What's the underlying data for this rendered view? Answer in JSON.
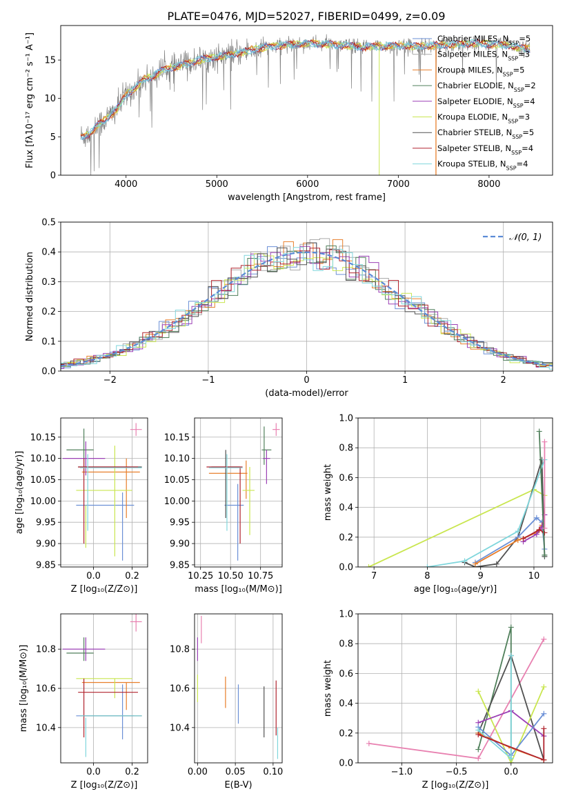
{
  "figure_title": "PLATE=0476, MJD=52027, FIBERID=0499, z=0.09",
  "colors": {
    "Chabrier MILES": "#6a8fd6",
    "Salpeter MILES": "#aaaaaa",
    "Kroupa MILES": "#e87e2a",
    "Chabrier ELODIE": "#4f7f5a",
    "Salpeter ELODIE": "#9b3fb5",
    "Kroupa ELODIE": "#c9e64f",
    "Chabrier STELIB": "#505050",
    "Salpeter STELIB": "#b0222d",
    "Kroupa STELIB": "#7fd6dc",
    "pink": "#e880b0",
    "gaussian": "#5b8bd6",
    "spectrum_data": "#808080"
  },
  "chart_data": [
    {
      "id": "spectrum",
      "type": "line",
      "title": "PLATE=0476, MJD=52027, FIBERID=0499, z=0.09",
      "xlabel": "wavelength [Angstrom, rest frame]",
      "ylabel": "Flux [fλ10⁻¹⁷ erg cm⁻² s⁻¹ A⁻¹]",
      "xlim": [
        3280,
        8700
      ],
      "ylim": [
        0,
        19.5
      ],
      "xticks": [
        "4000",
        "5000",
        "6000",
        "7000",
        "8000"
      ],
      "yticks": [
        "0",
        "5",
        "10",
        "15"
      ],
      "grid": false,
      "legend_position": "top-right",
      "legend": [
        "Chabrier MILES, N_SSP=5",
        "Salpeter MILES, N_SSP=3",
        "Kroupa MILES, N_SSP=5",
        "Chabrier ELODIE, N_SSP=2",
        "Salpeter ELODIE, N_SSP=4",
        "Kroupa ELODIE, N_SSP=3",
        "Chabrier STELIB, N_SSP=5",
        "Salpeter STELIB, N_SSP=4",
        "Kroupa STELIB, N_SSP=4"
      ],
      "continuum": {
        "x": [
          3500,
          3600,
          3700,
          3800,
          3900,
          4000,
          4100,
          4200,
          4300,
          4400,
          4600,
          4800,
          5000,
          5200,
          5400,
          5600,
          5800,
          6000,
          6200,
          6400,
          6600,
          6800,
          7000,
          7200,
          7400,
          7600,
          7800,
          8000,
          8200,
          8450
        ],
        "y": [
          5.0,
          5.4,
          6.6,
          7.5,
          8.6,
          10.5,
          11.4,
          12.5,
          12.9,
          13.7,
          14.3,
          15.0,
          15.4,
          15.8,
          16.4,
          16.8,
          17.0,
          17.2,
          17.1,
          16.9,
          16.7,
          16.8,
          16.9,
          16.8,
          16.9,
          17.0,
          17.2,
          17.1,
          16.9,
          16.4
        ]
      }
    },
    {
      "id": "residual_histogram",
      "type": "histogram",
      "xlabel": "(data-model)/error",
      "ylabel": "Normed distribution",
      "xlim": [
        -2.5,
        2.5
      ],
      "ylim": [
        0,
        0.5
      ],
      "xticks": [
        "−2",
        "−1",
        "0",
        "1",
        "2"
      ],
      "yticks": [
        "0.0",
        "0.1",
        "0.2",
        "0.3",
        "0.4",
        "0.5"
      ],
      "grid": true,
      "legend_position": "top-right",
      "legend": [
        "𝒩(0, 1)"
      ],
      "reference_curve": "standard normal density"
    },
    {
      "id": "age_vs_Z",
      "type": "errorbar",
      "xlabel": "Z [log₁₀(Z/Z⊙)]",
      "ylabel": "age  [log₁₀(age/yr)]",
      "xlim": [
        -0.17,
        0.28
      ],
      "ylim": [
        9.845,
        10.195
      ],
      "xticks": [
        "0.0",
        "0.2"
      ],
      "yticks": [
        "9.85",
        "9.90",
        "9.95",
        "10.00",
        "10.05",
        "10.10",
        "10.15"
      ],
      "grid": true,
      "points": [
        {
          "series": "Chabrier MILES",
          "x": 0.06,
          "xerr": 0.15,
          "y": 9.99,
          "yerr": 0.0
        },
        {
          "series": "Chabrier MILES",
          "x": 0.15,
          "xerr": 0.0,
          "y": 9.94,
          "yerr": 0.08
        },
        {
          "series": "Kroupa MILES",
          "x": 0.09,
          "xerr": 0.15,
          "y": 10.068,
          "yerr": 0.0
        },
        {
          "series": "Kroupa MILES",
          "x": 0.17,
          "xerr": 0.0,
          "y": 10.03,
          "yerr": 0.07
        },
        {
          "series": "Chabrier ELODIE",
          "x": -0.07,
          "xerr": 0.07,
          "y": 10.12,
          "yerr": 0.0
        },
        {
          "series": "Chabrier ELODIE",
          "x": -0.05,
          "xerr": 0.0,
          "y": 10.12,
          "yerr": 0.05
        },
        {
          "series": "Salpeter ELODIE",
          "x": -0.05,
          "xerr": 0.11,
          "y": 10.1,
          "yerr": 0.0
        },
        {
          "series": "Salpeter ELODIE",
          "x": -0.04,
          "xerr": 0.0,
          "y": 10.1,
          "yerr": 0.04
        },
        {
          "series": "Kroupa ELODIE",
          "x": 0.055,
          "xerr": 0.145,
          "y": 10.025,
          "yerr": 0.0
        },
        {
          "series": "Kroupa ELODIE",
          "x": 0.11,
          "xerr": 0.0,
          "y": 10.0,
          "yerr": 0.13
        },
        {
          "series": "Kroupa ELODIE",
          "x": -0.04,
          "xerr": 0.0,
          "y": 9.94,
          "yerr": 0.05
        },
        {
          "series": "Chabrier STELIB",
          "x": 0.085,
          "xerr": 0.165,
          "y": 10.08,
          "yerr": 0.0
        },
        {
          "series": "Salpeter STELIB",
          "x": 0.075,
          "xerr": 0.155,
          "y": 10.08,
          "yerr": 0.0
        },
        {
          "series": "Salpeter STELIB",
          "x": -0.05,
          "xerr": 0.0,
          "y": 10.0,
          "yerr": 0.1
        },
        {
          "series": "Kroupa STELIB",
          "x": 0.09,
          "xerr": 0.16,
          "y": 10.078,
          "yerr": 0.0
        },
        {
          "series": "Kroupa STELIB",
          "x": -0.03,
          "xerr": 0.0,
          "y": 10.02,
          "yerr": 0.09
        },
        {
          "series": "pink",
          "x": 0.22,
          "xerr": 0.03,
          "y": 10.168,
          "yerr": 0.015
        }
      ]
    },
    {
      "id": "age_vs_mass",
      "type": "errorbar",
      "xlabel": "mass [log₁₀(M/M⊙)]",
      "xlim": [
        10.2,
        10.93
      ],
      "ylim": [
        9.845,
        10.195
      ],
      "xticks": [
        "10.25",
        "10.50",
        "10.75"
      ],
      "yticks": [
        "9.85",
        "9.90",
        "9.95",
        "10.00",
        "10.05",
        "10.10",
        "10.15"
      ],
      "grid": true,
      "points": [
        {
          "series": "Chabrier MILES",
          "x": 10.53,
          "xerr": 0.08,
          "y": 9.99,
          "yerr": 0.0
        },
        {
          "series": "Chabrier MILES",
          "x": 10.56,
          "xerr": 0.0,
          "y": 9.95,
          "yerr": 0.09
        },
        {
          "series": "Kroupa MILES",
          "x": 10.48,
          "xerr": 0.16,
          "y": 10.065,
          "yerr": 0.0
        },
        {
          "series": "Kroupa MILES",
          "x": 10.63,
          "xerr": 0.0,
          "y": 10.05,
          "yerr": 0.045
        },
        {
          "series": "Chabrier ELODIE",
          "x": 10.8,
          "xerr": 0.04,
          "y": 10.12,
          "yerr": 0.0
        },
        {
          "series": "Chabrier ELODIE",
          "x": 10.78,
          "xerr": 0.0,
          "y": 10.13,
          "yerr": 0.045
        },
        {
          "series": "Salpeter ELODIE",
          "x": 10.8,
          "xerr": 0.03,
          "y": 10.1,
          "yerr": 0.0
        },
        {
          "series": "Salpeter ELODIE",
          "x": 10.8,
          "xerr": 0.0,
          "y": 10.08,
          "yerr": 0.04
        },
        {
          "series": "Kroupa ELODIE",
          "x": 10.65,
          "xerr": 0.05,
          "y": 10.025,
          "yerr": 0.0
        },
        {
          "series": "Kroupa ELODIE",
          "x": 10.66,
          "xerr": 0.0,
          "y": 10.0,
          "yerr": 0.08
        },
        {
          "series": "Chabrier STELIB",
          "x": 10.46,
          "xerr": 0.12,
          "y": 10.08,
          "yerr": 0.0
        },
        {
          "series": "Chabrier STELIB",
          "x": 10.46,
          "xerr": 0.0,
          "y": 10.04,
          "yerr": 0.08
        },
        {
          "series": "Salpeter STELIB",
          "x": 10.45,
          "xerr": 0.15,
          "y": 10.08,
          "yerr": 0.0
        },
        {
          "series": "Salpeter STELIB",
          "x": 10.58,
          "xerr": 0.0,
          "y": 9.99,
          "yerr": 0.09
        },
        {
          "series": "Kroupa STELIB",
          "x": 10.46,
          "xerr": 0.14,
          "y": 10.078,
          "yerr": 0.0
        },
        {
          "series": "Kroupa STELIB",
          "x": 10.47,
          "xerr": 0.0,
          "y": 10.02,
          "yerr": 0.09
        },
        {
          "series": "pink",
          "x": 10.88,
          "xerr": 0.03,
          "y": 10.168,
          "yerr": 0.015
        }
      ]
    },
    {
      "id": "massweight_vs_age",
      "type": "line",
      "xlabel": "age  [log₁₀(age/yr)]",
      "ylabel": "mass weight",
      "xlim": [
        6.7,
        10.35
      ],
      "ylim": [
        0,
        1
      ],
      "xticks": [
        "7",
        "8",
        "9",
        "10"
      ],
      "yticks": [
        "0.0",
        "0.2",
        "0.4",
        "0.6",
        "0.8",
        "1.0"
      ],
      "grid": true,
      "series": [
        {
          "series": "Kroupa ELODIE",
          "x": [
            6.9,
            10.0,
            10.2
          ],
          "y": [
            0.0,
            0.52,
            0.48
          ]
        },
        {
          "series": "Chabrier STELIB",
          "x": [
            8.7,
            8.9,
            9.3,
            9.7,
            10.15,
            10.2
          ],
          "y": [
            0.03,
            0.0,
            0.02,
            0.2,
            0.72,
            0.07
          ]
        },
        {
          "series": "Kroupa STELIB",
          "x": [
            8.0,
            8.7,
            9.7,
            10.2
          ],
          "y": [
            0.0,
            0.04,
            0.24,
            0.72
          ]
        },
        {
          "series": "Chabrier MILES",
          "x": [
            8.9,
            9.7,
            10.05,
            10.15,
            10.2
          ],
          "y": [
            0.03,
            0.2,
            0.33,
            0.3,
            0.12
          ]
        },
        {
          "series": "Kroupa MILES",
          "x": [
            8.9,
            9.7,
            10.05,
            10.15
          ],
          "y": [
            0.02,
            0.18,
            0.23,
            0.28
          ]
        },
        {
          "series": "Salpeter ELODIE",
          "x": [
            9.8,
            10.05,
            10.15,
            10.2
          ],
          "y": [
            0.17,
            0.22,
            0.27,
            0.35
          ]
        },
        {
          "series": "Salpeter STELIB",
          "x": [
            9.8,
            10.1,
            10.2
          ],
          "y": [
            0.19,
            0.25,
            0.23
          ]
        },
        {
          "series": "Chabrier ELODIE",
          "x": [
            10.1,
            10.2
          ],
          "y": [
            0.91,
            0.08
          ]
        },
        {
          "series": "pink",
          "x": [
            10.2,
            10.2
          ],
          "y": [
            0.84,
            0.26
          ]
        }
      ]
    },
    {
      "id": "mass_vs_Z",
      "type": "errorbar",
      "xlabel": "Z [log₁₀(Z/Z⊙)]",
      "ylabel": "mass [log₁₀(M/M⊙)]",
      "xlim": [
        -0.17,
        0.28
      ],
      "ylim": [
        10.22,
        10.98
      ],
      "xticks": [
        "0.0",
        "0.2"
      ],
      "yticks": [
        "10.4",
        "10.6",
        "10.8"
      ],
      "grid": true,
      "points": [
        {
          "series": "Chabrier MILES",
          "x": 0.06,
          "xerr": 0.15,
          "y": 10.46,
          "yerr": 0.0
        },
        {
          "series": "Chabrier MILES",
          "x": 0.15,
          "xerr": 0.0,
          "y": 10.48,
          "yerr": 0.14
        },
        {
          "series": "Kroupa MILES",
          "x": 0.09,
          "xerr": 0.15,
          "y": 10.63,
          "yerr": 0.0
        },
        {
          "series": "Kroupa MILES",
          "x": 0.17,
          "xerr": 0.0,
          "y": 10.56,
          "yerr": 0.07
        },
        {
          "series": "Chabrier ELODIE",
          "x": -0.07,
          "xerr": 0.07,
          "y": 10.78,
          "yerr": 0.0
        },
        {
          "series": "Chabrier ELODIE",
          "x": -0.05,
          "xerr": 0.0,
          "y": 10.8,
          "yerr": 0.06
        },
        {
          "series": "Salpeter ELODIE",
          "x": -0.05,
          "xerr": 0.11,
          "y": 10.8,
          "yerr": 0.0
        },
        {
          "series": "Salpeter ELODIE",
          "x": -0.04,
          "xerr": 0.0,
          "y": 10.8,
          "yerr": 0.06
        },
        {
          "series": "Kroupa ELODIE",
          "x": 0.055,
          "xerr": 0.145,
          "y": 10.65,
          "yerr": 0.0
        },
        {
          "series": "Kroupa ELODIE",
          "x": 0.11,
          "xerr": 0.0,
          "y": 10.6,
          "yerr": 0.05
        },
        {
          "series": "Chabrier STELIB",
          "x": 0.09,
          "xerr": 0.16,
          "y": 10.46,
          "yerr": 0.0
        },
        {
          "series": "Salpeter STELIB",
          "x": 0.075,
          "xerr": 0.155,
          "y": 10.58,
          "yerr": 0.0
        },
        {
          "series": "Salpeter STELIB",
          "x": -0.05,
          "xerr": 0.0,
          "y": 10.5,
          "yerr": 0.15
        },
        {
          "series": "Kroupa STELIB",
          "x": 0.09,
          "xerr": 0.16,
          "y": 10.46,
          "yerr": 0.0
        },
        {
          "series": "Kroupa STELIB",
          "x": -0.04,
          "xerr": 0.0,
          "y": 10.35,
          "yerr": 0.1
        },
        {
          "series": "pink",
          "x": 0.22,
          "xerr": 0.03,
          "y": 10.94,
          "yerr": 0.05
        }
      ]
    },
    {
      "id": "mass_vs_EBV",
      "type": "errorbar",
      "xlabel": "E(B-V)",
      "xlim": [
        -0.004,
        0.112
      ],
      "ylim": [
        10.22,
        10.98
      ],
      "xticks": [
        "0.00",
        "0.05",
        "0.10"
      ],
      "yticks": [
        "10.4",
        "10.6",
        "10.8"
      ],
      "grid": true,
      "points": [
        {
          "series": "Salpeter ELODIE",
          "x": 0.0,
          "xerr": 0.0,
          "y": 10.8,
          "yerr": 0.06
        },
        {
          "series": "Kroupa ELODIE",
          "x": 0.0,
          "xerr": 0.0,
          "y": 10.6,
          "yerr": 0.07
        },
        {
          "series": "pink",
          "x": 0.005,
          "xerr": 0.0,
          "y": 10.9,
          "yerr": 0.07
        },
        {
          "series": "Kroupa MILES",
          "x": 0.037,
          "xerr": 0.0,
          "y": 10.58,
          "yerr": 0.08
        },
        {
          "series": "Chabrier MILES",
          "x": 0.054,
          "xerr": 0.0,
          "y": 10.52,
          "yerr": 0.1
        },
        {
          "series": "Chabrier STELIB",
          "x": 0.088,
          "xerr": 0.0,
          "y": 10.48,
          "yerr": 0.13
        },
        {
          "series": "Salpeter STELIB",
          "x": 0.104,
          "xerr": 0.0,
          "y": 10.5,
          "yerr": 0.14
        },
        {
          "series": "Kroupa STELIB",
          "x": 0.106,
          "xerr": 0.0,
          "y": 10.32,
          "yerr": 0.08
        }
      ]
    },
    {
      "id": "massweight_vs_Z",
      "type": "line",
      "xlabel": "Z [log₁₀(Z/Z⊙)]",
      "ylabel": "mass weight",
      "xlim": [
        -1.4,
        0.38
      ],
      "ylim": [
        0,
        1
      ],
      "xticks": [
        "−1.0",
        "−0.5",
        "0.0"
      ],
      "yticks": [
        "0.0",
        "0.2",
        "0.4",
        "0.6",
        "0.8",
        "1.0"
      ],
      "grid": true,
      "series": [
        {
          "series": "pink",
          "x": [
            -1.3,
            -0.3,
            0.3
          ],
          "y": [
            0.13,
            0.03,
            0.83
          ]
        },
        {
          "series": "Chabrier ELODIE",
          "x": [
            -0.3,
            0.0,
            0.0
          ],
          "y": [
            0.09,
            0.91,
            0.0
          ]
        },
        {
          "series": "Chabrier STELIB",
          "x": [
            -0.3,
            0.0,
            0.3
          ],
          "y": [
            0.2,
            0.72,
            0.02
          ]
        },
        {
          "series": "Kroupa ELODIE",
          "x": [
            -0.3,
            0.0,
            0.3
          ],
          "y": [
            0.48,
            0.0,
            0.51
          ]
        },
        {
          "series": "Salpeter ELODIE",
          "x": [
            -0.3,
            0.0,
            0.3
          ],
          "y": [
            0.27,
            0.35,
            0.18
          ]
        },
        {
          "series": "Chabrier MILES",
          "x": [
            -0.3,
            0.0,
            0.3
          ],
          "y": [
            0.24,
            0.05,
            0.33
          ]
        },
        {
          "series": "Kroupa MILES",
          "x": [
            -0.3,
            0.0,
            0.3
          ],
          "y": [
            0.2,
            0.1,
            0.02
          ]
        },
        {
          "series": "Kroupa STELIB",
          "x": [
            -0.3,
            0.0,
            0.0
          ],
          "y": [
            0.22,
            0.03,
            0.72
          ]
        },
        {
          "series": "Salpeter STELIB",
          "x": [
            -0.3,
            0.3,
            0.3
          ],
          "y": [
            0.19,
            0.02,
            0.23
          ]
        }
      ]
    }
  ]
}
